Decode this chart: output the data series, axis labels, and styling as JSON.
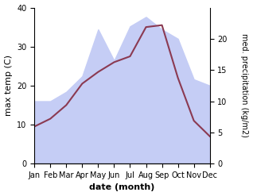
{
  "months": [
    "Jan",
    "Feb",
    "Mar",
    "Apr",
    "May",
    "Jun",
    "Jul",
    "Aug",
    "Sep",
    "Oct",
    "Nov",
    "Dec"
  ],
  "month_x": [
    0,
    1,
    2,
    3,
    4,
    5,
    6,
    7,
    8,
    9,
    10,
    11
  ],
  "temperature": [
    9.5,
    11.5,
    15.0,
    20.5,
    23.5,
    26.0,
    27.5,
    35.0,
    35.5,
    22.0,
    11.0,
    7.0
  ],
  "precipitation": [
    10.0,
    10.0,
    11.5,
    14.0,
    21.5,
    16.5,
    22.0,
    23.5,
    21.5,
    20.0,
    13.5,
    12.5
  ],
  "temp_color": "#8B3A52",
  "precip_fill_color": "#c5cdf5",
  "temp_ylim": [
    0,
    40
  ],
  "precip_ylim": [
    0,
    25
  ],
  "precip_yticks": [
    0,
    5,
    10,
    15,
    20
  ],
  "temp_yticks": [
    0,
    10,
    20,
    30,
    40
  ],
  "xlabel": "date (month)",
  "ylabel_left": "max temp (C)",
  "ylabel_right": "med. precipitation (kg/m2)",
  "line_width": 1.5,
  "figsize": [
    3.18,
    2.47
  ],
  "dpi": 100
}
